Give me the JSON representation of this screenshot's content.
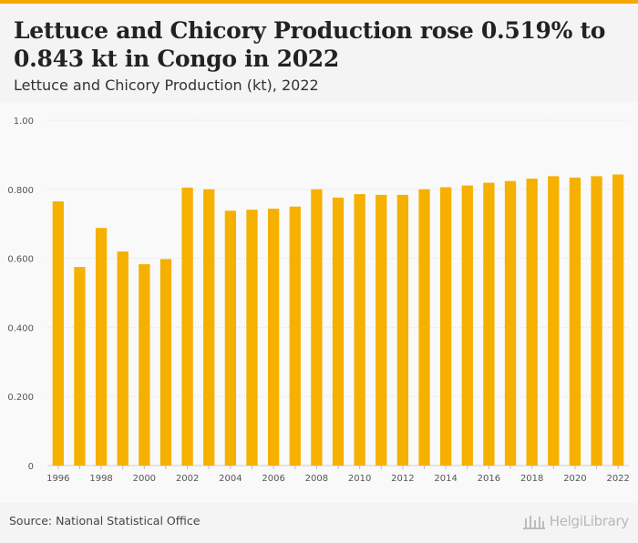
{
  "header": {
    "title": "Lettuce and Chicory Production rose 0.519% to 0.843 kt in Congo in 2022",
    "subtitle": "Lettuce and Chicory Production (kt), 2022"
  },
  "footer": {
    "source": "Source: National Statistical Office",
    "logo_text": "HelgiLibrary"
  },
  "colors": {
    "bar": "#f5b000",
    "accent": "#f5a800",
    "grid": "#dddddd"
  },
  "chart_data": {
    "type": "bar",
    "categories": [
      "1996",
      "1997",
      "1998",
      "1999",
      "2000",
      "2001",
      "2002",
      "2003",
      "2004",
      "2005",
      "2006",
      "2007",
      "2008",
      "2009",
      "2010",
      "2011",
      "2012",
      "2013",
      "2014",
      "2015",
      "2016",
      "2017",
      "2018",
      "2019",
      "2020",
      "2021",
      "2022"
    ],
    "values": [
      0.765,
      0.575,
      0.688,
      0.62,
      0.583,
      0.598,
      0.805,
      0.8,
      0.738,
      0.741,
      0.744,
      0.75,
      0.8,
      0.776,
      0.786,
      0.784,
      0.784,
      0.8,
      0.806,
      0.811,
      0.819,
      0.824,
      0.831,
      0.838,
      0.834,
      0.838,
      0.843
    ],
    "ylim": [
      0,
      1.0
    ],
    "yticks": [
      "0",
      "0.200",
      "0.400",
      "0.600",
      "0.800",
      "1.00"
    ],
    "ytick_values": [
      0,
      0.2,
      0.4,
      0.6,
      0.8,
      1.0
    ],
    "xtick_labels": [
      "1996",
      "1998",
      "2000",
      "2002",
      "2004",
      "2006",
      "2008",
      "2010",
      "2012",
      "2014",
      "2016",
      "2018",
      "2020",
      "2022"
    ],
    "grid": true,
    "xlabel": "",
    "ylabel": ""
  }
}
